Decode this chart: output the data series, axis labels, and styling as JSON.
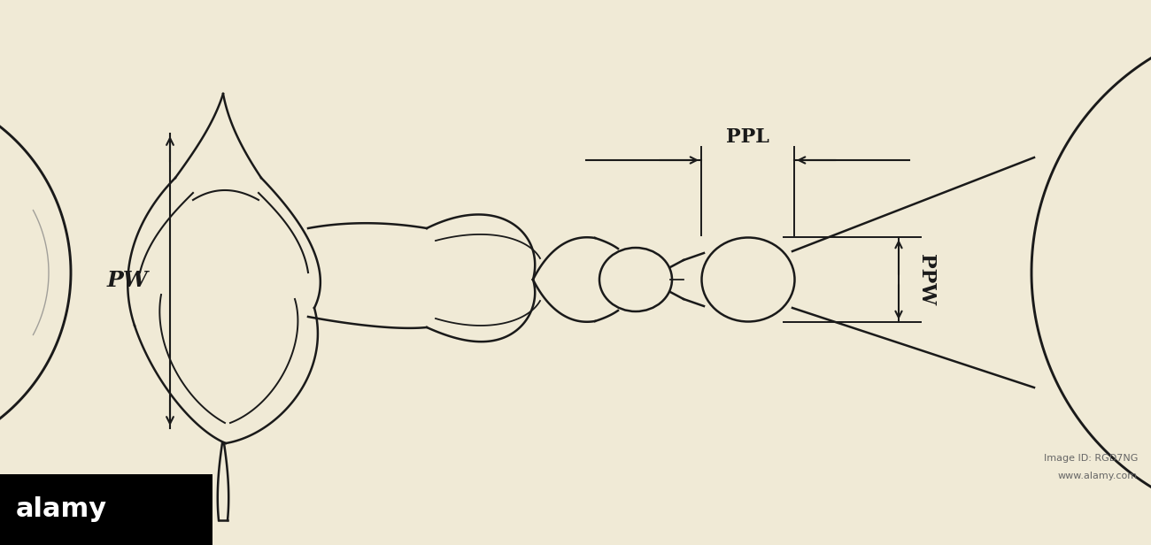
{
  "background_color": "#f0ead6",
  "line_color": "#1a1a1a",
  "fig_width": 13.0,
  "fig_height": 6.16,
  "dpi": 100,
  "label_PW": "PW",
  "label_PPL": "PPL",
  "label_PPW": "PPW",
  "label_fontsize": 18,
  "label_fontweight": "bold",
  "label_fontstyle": "italic"
}
